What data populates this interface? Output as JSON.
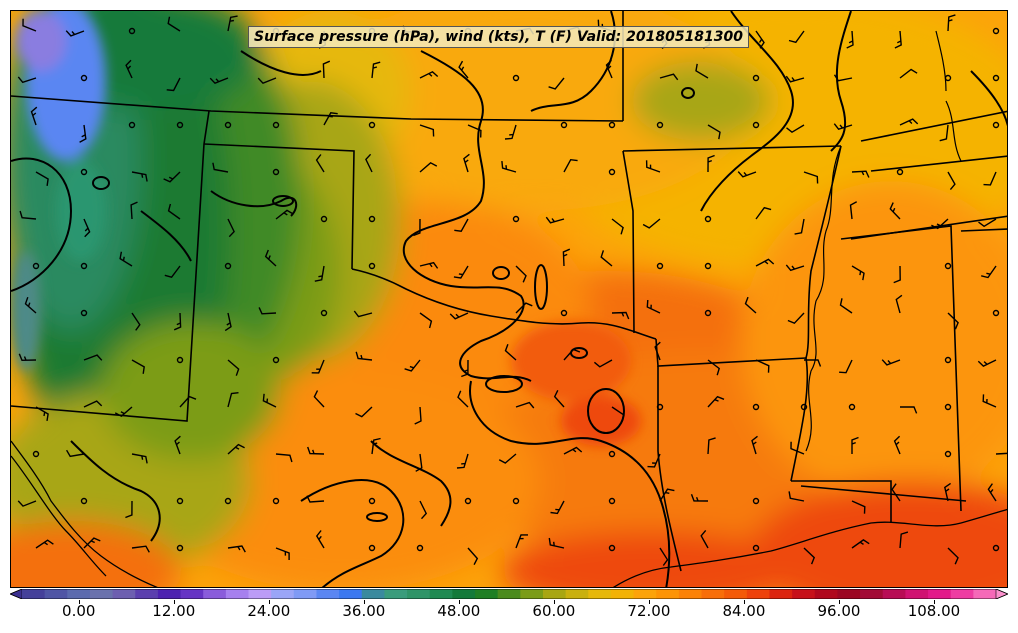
{
  "title": "Surface pressure (hPa), wind (kts), T (F) Valid: 201805181300",
  "colorbar": {
    "ticks": [
      "0.00",
      "12.00",
      "24.00",
      "36.00",
      "48.00",
      "60.00",
      "72.00",
      "84.00",
      "96.00",
      "108.00"
    ],
    "min": -3,
    "max": 120,
    "step": 3,
    "extend": "both",
    "colors": [
      "#3a2f8f",
      "#44409a",
      "#4f55a5",
      "#5b6aae",
      "#6a72ad",
      "#6d5fb0",
      "#5b3fae",
      "#4d22b0",
      "#6634c4",
      "#8a5cdb",
      "#a680ee",
      "#bb9cf6",
      "#9aa5f7",
      "#7f9af5",
      "#5a86f2",
      "#3b78f0",
      "#3a8a9e",
      "#3a9c7c",
      "#2f9468",
      "#1f8a52",
      "#137a3a",
      "#1f7f24",
      "#4b8b1d",
      "#7b9c18",
      "#a8a612",
      "#c9b00e",
      "#e6b80a",
      "#f2b205",
      "#fca30a",
      "#fd9406",
      "#fb8207",
      "#f86e09",
      "#f45a08",
      "#ee420b",
      "#dc240f",
      "#c7111a",
      "#b0081d",
      "#9c0622",
      "#a20a36",
      "#b80c55",
      "#d01272",
      "#e21a8a",
      "#ee3ca2",
      "#f569b8",
      "#fa90cc"
    ]
  },
  "map": {
    "projection": "Lambert conformal",
    "region": "South-central United States",
    "layers": [
      "temperature-fill",
      "state-boundaries",
      "coastline",
      "isobars",
      "wind-barbs"
    ]
  }
}
